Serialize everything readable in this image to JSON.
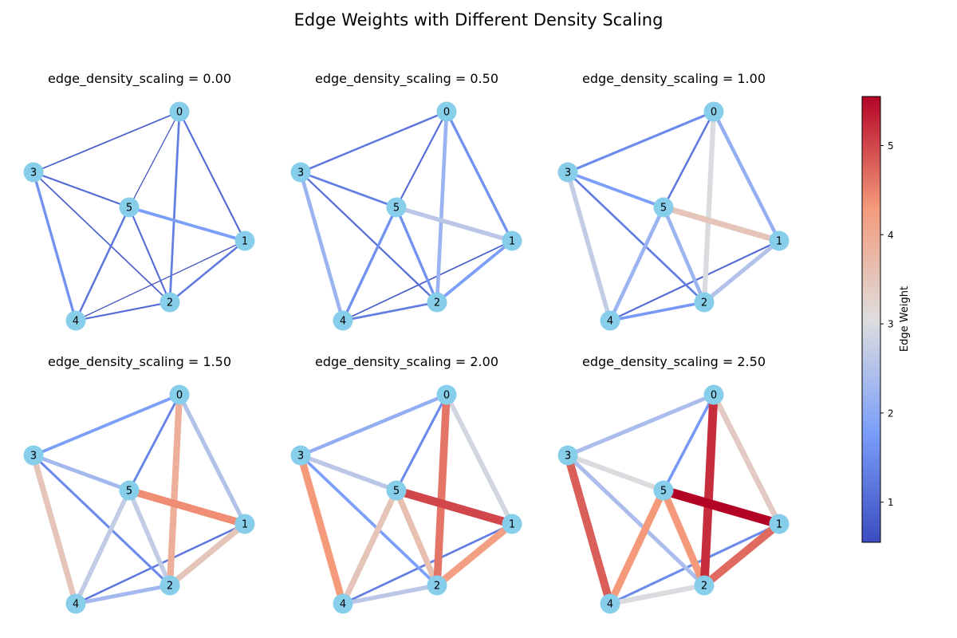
{
  "title": "Edge Weights with Different Density Scaling",
  "colorbar": {
    "label": "Edge Weight",
    "range": [
      0.55,
      5.55
    ],
    "ticks": [
      "1",
      "2",
      "3",
      "4",
      "5"
    ],
    "colormap": "coolwarm"
  },
  "node_color": "#87ceeb",
  "chart_data": {
    "type": "network",
    "node_labels": [
      "0",
      "1",
      "2",
      "3",
      "4",
      "5"
    ],
    "edges": [
      [
        0,
        5
      ],
      [
        0,
        2
      ],
      [
        0,
        1
      ],
      [
        0,
        3
      ],
      [
        1,
        5
      ],
      [
        1,
        2
      ],
      [
        1,
        4
      ],
      [
        2,
        5
      ],
      [
        2,
        3
      ],
      [
        2,
        4
      ],
      [
        3,
        5
      ],
      [
        3,
        4
      ],
      [
        4,
        5
      ]
    ],
    "panels": [
      {
        "title": "edge_density_scaling = 0.00",
        "weights": [
          0.6,
          1.3,
          1.0,
          0.8,
          1.8,
          1.2,
          0.6,
          1.0,
          0.8,
          1.0,
          1.0,
          1.6,
          1.2
        ]
      },
      {
        "title": "edge_density_scaling = 0.50",
        "weights": [
          1.0,
          2.2,
          1.6,
          1.2,
          2.6,
          1.8,
          0.8,
          1.6,
          1.1,
          1.3,
          1.3,
          2.2,
          1.6
        ]
      },
      {
        "title": "edge_density_scaling = 1.00",
        "weights": [
          1.2,
          3.0,
          2.1,
          1.5,
          3.5,
          2.5,
          1.0,
          2.2,
          1.3,
          1.7,
          1.8,
          2.7,
          2.2
        ]
      },
      {
        "title": "edge_density_scaling = 1.50",
        "weights": [
          1.4,
          3.9,
          2.5,
          1.8,
          4.4,
          3.5,
          1.2,
          2.7,
          1.5,
          2.3,
          2.3,
          3.5,
          2.7
        ]
      },
      {
        "title": "edge_density_scaling = 2.00",
        "weights": [
          1.5,
          4.6,
          2.9,
          2.1,
          5.0,
          4.2,
          1.3,
          3.6,
          1.8,
          2.6,
          2.6,
          4.3,
          3.5
        ]
      },
      {
        "title": "edge_density_scaling = 2.50",
        "weights": [
          1.7,
          5.2,
          3.4,
          2.4,
          5.55,
          4.7,
          1.5,
          4.3,
          2.4,
          3.0,
          3.0,
          4.8,
          4.3
        ]
      }
    ]
  }
}
